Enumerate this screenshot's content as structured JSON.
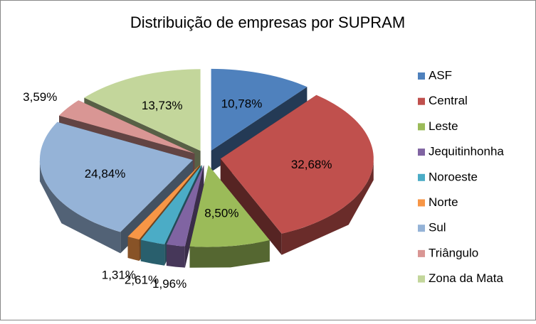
{
  "chart_data": {
    "type": "pie",
    "title": "Distribuição de empresas por SUPRAM",
    "categories": [
      "ASF",
      "Central",
      "Leste",
      "Jequitinhonha",
      "Noroeste",
      "Norte",
      "Sul",
      "Triângulo",
      "Zona da Mata"
    ],
    "values": [
      10.78,
      32.68,
      8.5,
      1.96,
      2.61,
      1.31,
      24.84,
      3.59,
      13.73
    ],
    "value_labels": [
      "10,78%",
      "32,68%",
      "8,50%",
      "1,96%",
      "2,61%",
      "1,31%",
      "24,84%",
      "3,59%",
      "13,73%"
    ],
    "colors": [
      "#4f81bd",
      "#c0504d",
      "#9bbb59",
      "#8064a2",
      "#4bacc6",
      "#f79646",
      "#95b3d7",
      "#d99694",
      "#c3d69b"
    ],
    "legend": "right"
  }
}
